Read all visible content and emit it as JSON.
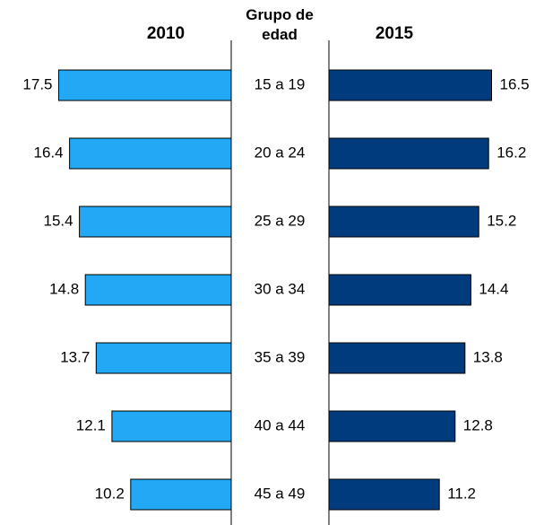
{
  "chart_data": {
    "type": "butterfly",
    "xlabel": "Grupo de edad",
    "categories": [
      "15 a 19",
      "20 a 24",
      "25 a 29",
      "30 a 34",
      "35 a 39",
      "40 a 44",
      "45 a 49"
    ],
    "series": [
      {
        "name": "2010",
        "color": "#22a8f4",
        "values": [
          17.5,
          16.4,
          15.4,
          14.8,
          13.7,
          12.1,
          10.2
        ]
      },
      {
        "name": "2015",
        "color": "#003b7d",
        "values": [
          16.5,
          16.2,
          15.2,
          14.4,
          13.8,
          12.8,
          11.2
        ]
      }
    ]
  }
}
